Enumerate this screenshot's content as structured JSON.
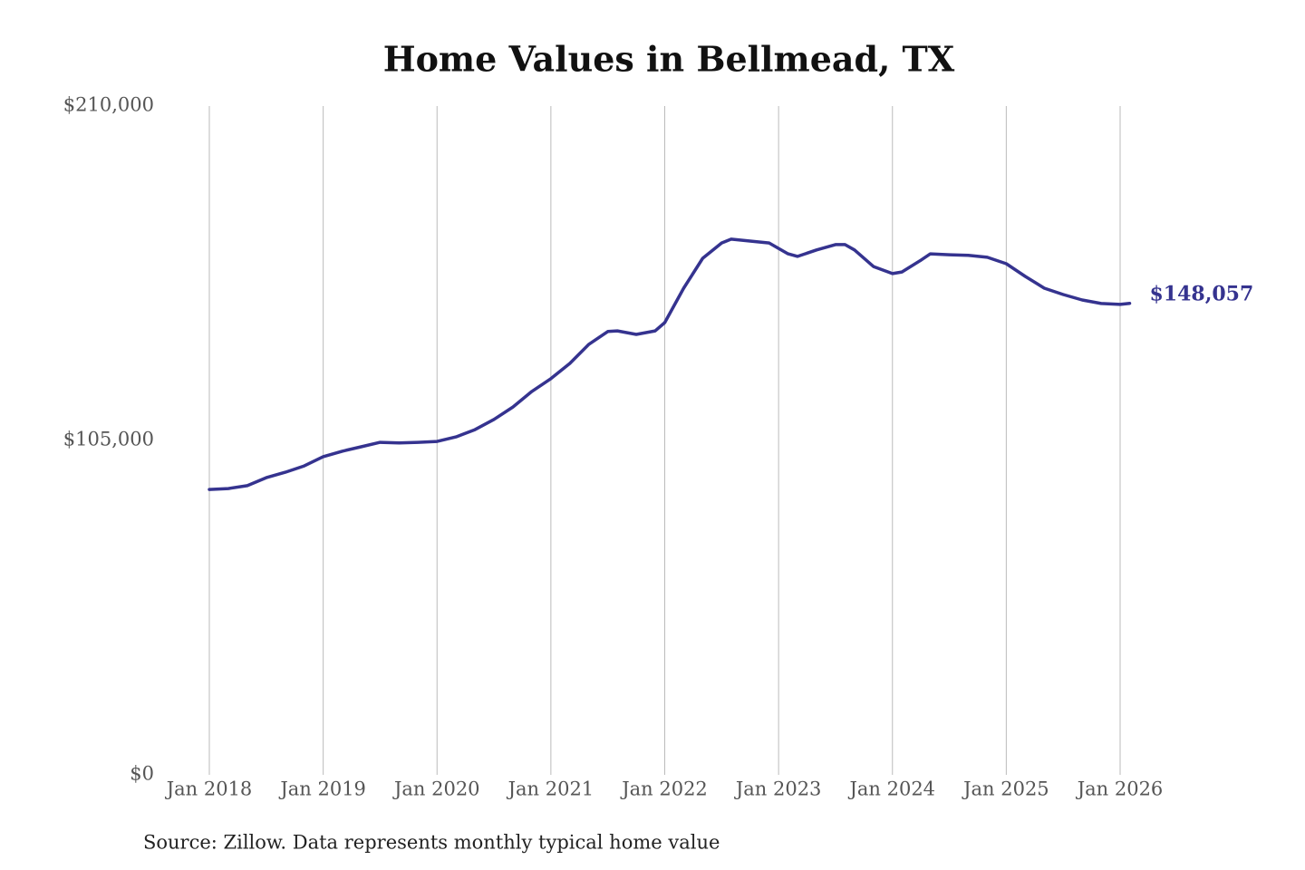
{
  "chart_data": {
    "type": "line",
    "title": "Home Values in Bellmead, TX",
    "source": "Source: Zillow. Data represents monthly typical home value",
    "x": [
      "2018-01",
      "2018-03",
      "2018-05",
      "2018-07",
      "2018-09",
      "2018-11",
      "2019-01",
      "2019-03",
      "2019-05",
      "2019-07",
      "2019-09",
      "2019-11",
      "2020-01",
      "2020-03",
      "2020-05",
      "2020-07",
      "2020-09",
      "2020-11",
      "2021-01",
      "2021-03",
      "2021-05",
      "2021-07",
      "2021-08",
      "2021-10",
      "2021-12",
      "2022-01",
      "2022-03",
      "2022-05",
      "2022-07",
      "2022-08",
      "2022-10",
      "2022-12",
      "2023-01",
      "2023-02",
      "2023-03",
      "2023-05",
      "2023-07",
      "2023-08",
      "2023-09",
      "2023-11",
      "2024-01",
      "2024-02",
      "2024-04",
      "2024-05",
      "2024-07",
      "2024-09",
      "2024-11",
      "2025-01",
      "2025-03",
      "2025-05",
      "2025-07",
      "2025-09",
      "2025-11",
      "2026-01",
      "2026-02"
    ],
    "series": [
      {
        "name": "Home value",
        "color": "#35338f",
        "values": [
          89600,
          89900,
          90800,
          93300,
          95000,
          97000,
          99900,
          101600,
          103000,
          104400,
          104200,
          104400,
          104700,
          106100,
          108400,
          111600,
          115500,
          120400,
          124400,
          129200,
          135200,
          139200,
          139400,
          138300,
          139400,
          142000,
          152800,
          162200,
          167000,
          168200,
          167600,
          167000,
          165300,
          163600,
          162800,
          164800,
          166500,
          166500,
          164800,
          159600,
          157400,
          157900,
          161600,
          163600,
          163300,
          163100,
          162500,
          160500,
          156500,
          152800,
          150800,
          149100,
          148000,
          147700,
          148057
        ],
        "value_labels": [
          null,
          null,
          null,
          null,
          null,
          null,
          null,
          null,
          null,
          null,
          null,
          null,
          null,
          null,
          null,
          null,
          null,
          null,
          null,
          null,
          null,
          null,
          null,
          null,
          null,
          null,
          null,
          null,
          null,
          null,
          null,
          null,
          null,
          null,
          null,
          null,
          null,
          null,
          null,
          null,
          null,
          null,
          null,
          null,
          null,
          null,
          null,
          null,
          null,
          null,
          null,
          null,
          null,
          null,
          "$148,057"
        ]
      }
    ],
    "xlim": [
      "2018-01",
      "2026-01"
    ],
    "xticks": [
      {
        "value": "2018-01",
        "label": "Jan 2018"
      },
      {
        "value": "2019-01",
        "label": "Jan 2019"
      },
      {
        "value": "2020-01",
        "label": "Jan 2020"
      },
      {
        "value": "2021-01",
        "label": "Jan 2021"
      },
      {
        "value": "2022-01",
        "label": "Jan 2022"
      },
      {
        "value": "2023-01",
        "label": "Jan 2023"
      },
      {
        "value": "2024-01",
        "label": "Jan 2024"
      },
      {
        "value": "2025-01",
        "label": "Jan 2025"
      },
      {
        "value": "2026-01",
        "label": "Jan 2026"
      }
    ],
    "ylim": [
      0,
      210000
    ],
    "yticks": [
      {
        "value": 0,
        "label": "$0"
      },
      {
        "value": 105000,
        "label": "$105,000"
      },
      {
        "value": 210000,
        "label": "$210,000"
      }
    ],
    "grid": "x"
  }
}
